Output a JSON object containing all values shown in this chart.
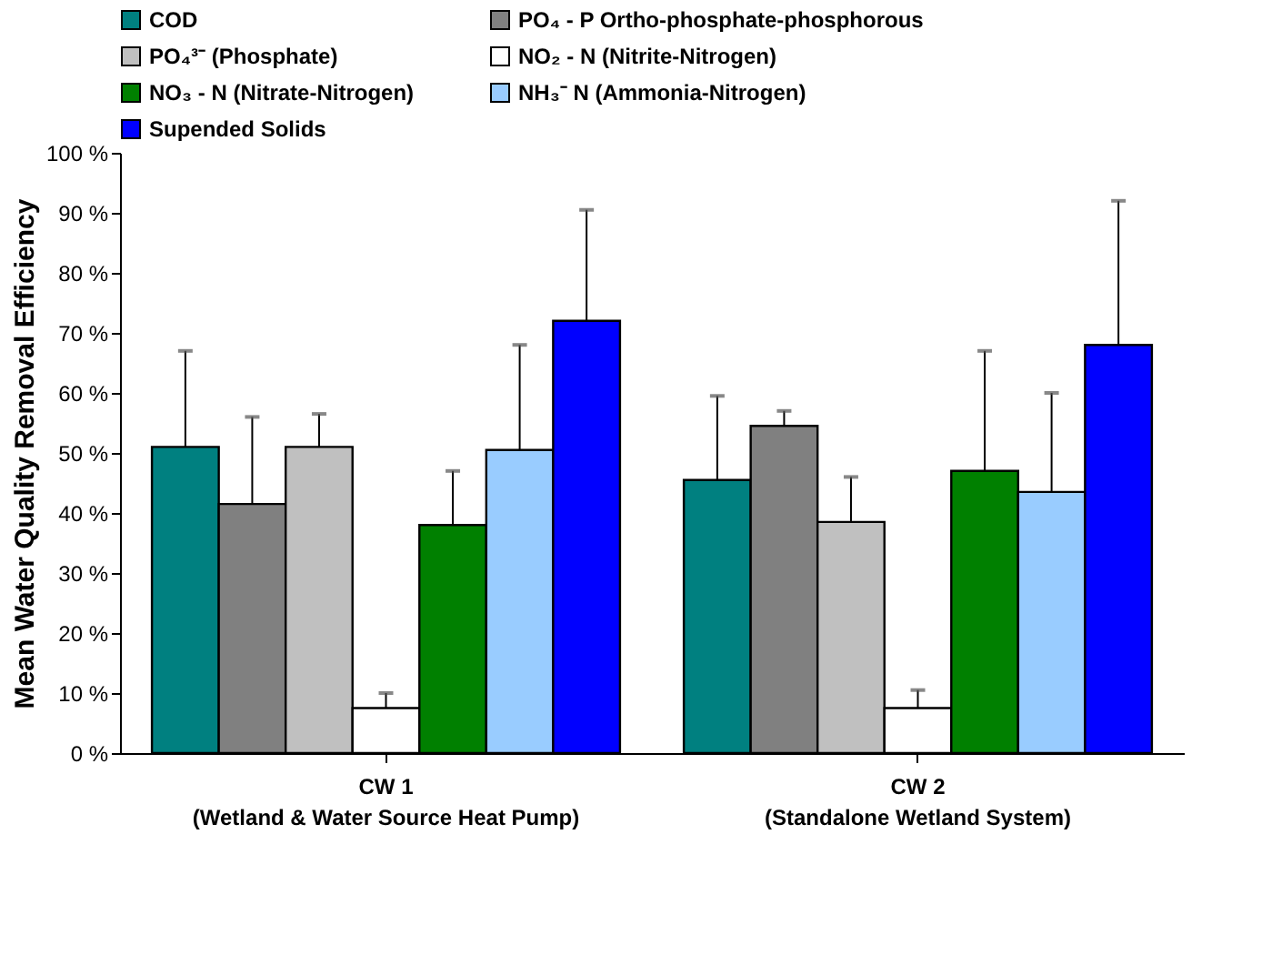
{
  "chart_data": {
    "type": "bar",
    "ylabel": "Mean Water Quality Removal Efficiency",
    "categories": [
      "CW 1\n(Wetland & Water Source Heat Pump)",
      "CW 2\n(Standalone Wetland System)"
    ],
    "series": [
      {
        "name": "COD",
        "color": "#008080",
        "values": [
          51,
          45.5
        ],
        "errors": [
          [
            51,
            67
          ],
          [
            45.5,
            59.5
          ]
        ]
      },
      {
        "name": "PO₄ - P  Ortho-phosphate-phosphorous",
        "color": "#808080",
        "values": [
          41.5,
          54.5
        ],
        "errors": [
          [
            41.5,
            56
          ],
          [
            54.5,
            57
          ]
        ]
      },
      {
        "name": "PO₄³⁻  (Phosphate)",
        "color": "#c0c0c0",
        "values": [
          51,
          38.5
        ],
        "errors": [
          [
            51,
            56.5
          ],
          [
            38.5,
            46
          ]
        ]
      },
      {
        "name": "NO₂ - N (Nitrite-Nitrogen)",
        "color": "#ffffff",
        "values": [
          7.5,
          7.5
        ],
        "errors": [
          [
            7.5,
            10
          ],
          [
            7.5,
            10.5
          ]
        ]
      },
      {
        "name": "NO₃ - N (Nitrate-Nitrogen)",
        "color": "#008000",
        "values": [
          38,
          47
        ],
        "errors": [
          [
            38,
            47
          ],
          [
            47,
            67
          ]
        ]
      },
      {
        "name": "NH₃⁻ N (Ammonia-Nitrogen)",
        "color": "#99ccff",
        "values": [
          50.5,
          43.5
        ],
        "errors": [
          [
            50.5,
            68
          ],
          [
            43.5,
            60
          ]
        ]
      },
      {
        "name": "Supended Solids",
        "color": "#0000ff",
        "values": [
          72,
          68
        ],
        "errors": [
          [
            72,
            90.5
          ],
          [
            68,
            92
          ]
        ]
      }
    ],
    "ylim": [
      0,
      100
    ],
    "yticks": [
      {
        "value": 0,
        "label": "0 %"
      },
      {
        "value": 10,
        "label": "10 %"
      },
      {
        "value": 20,
        "label": "20 %"
      },
      {
        "value": 30,
        "label": "30 %"
      },
      {
        "value": 40,
        "label": "40 %"
      },
      {
        "value": 50,
        "label": "50 %"
      },
      {
        "value": 60,
        "label": "60 %"
      },
      {
        "value": 70,
        "label": "70 %"
      },
      {
        "value": 80,
        "label": "80 %"
      },
      {
        "value": 90,
        "label": "90 %"
      },
      {
        "value": 100,
        "label": "100 %"
      }
    ],
    "grid": false,
    "legend": "top"
  }
}
